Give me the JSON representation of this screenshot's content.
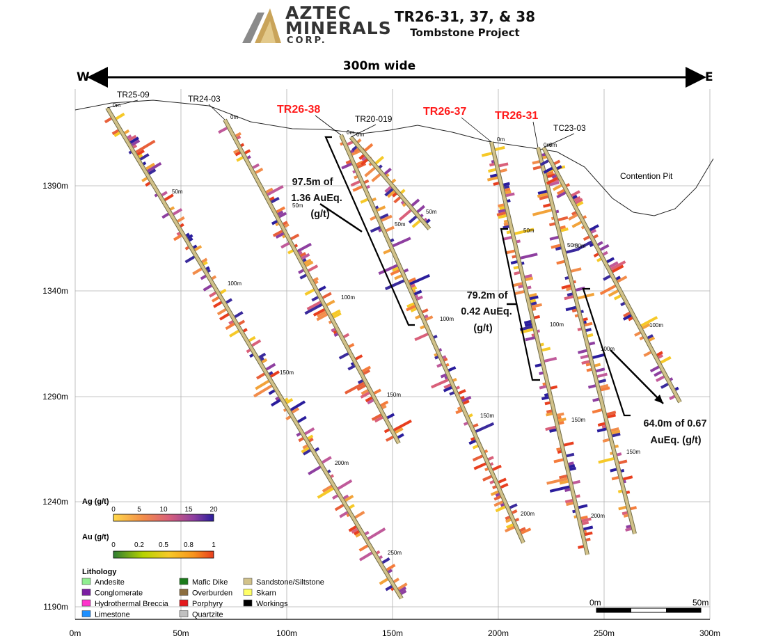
{
  "logo": {
    "line1": "AZTEC",
    "line2": "MINERALS",
    "line3": "CORP.",
    "colors": {
      "gold": "#C9A45A",
      "grey": "#8A8A8A"
    }
  },
  "title": {
    "line1": "TR26-31, 37, & 38",
    "line2": "Tombstone Project"
  },
  "orientation": {
    "west": "W",
    "east": "E",
    "width_label": "300m wide"
  },
  "axes": {
    "x_ticks": [
      "0m",
      "50m",
      "100m",
      "150m",
      "200m",
      "250m",
      "300m"
    ],
    "y_ticks": [
      "1390m",
      "1340m",
      "1290m",
      "1240m",
      "1190m"
    ]
  },
  "pit_label": "Contention Pit",
  "drillholes": [
    {
      "name": "TR25-09",
      "highlight": false,
      "collar_label": "0m",
      "depth_labels": [
        "50m",
        "100m",
        "150m",
        "200m",
        "250m"
      ]
    },
    {
      "name": "TR24-03",
      "highlight": false,
      "collar_label": "0m",
      "depth_labels": [
        "50m",
        "100m",
        "150m"
      ]
    },
    {
      "name": "TR26-38",
      "highlight": true,
      "collar_label": "0m",
      "depth_labels": [
        "50m",
        "100m",
        "150m",
        "200m"
      ]
    },
    {
      "name": "TR20-019",
      "highlight": false,
      "collar_label": "0m",
      "depth_labels": [
        "50m"
      ]
    },
    {
      "name": "TR26-37",
      "highlight": true,
      "collar_label": "0m",
      "depth_labels": [
        "50m",
        "100m",
        "150m",
        "200m"
      ]
    },
    {
      "name": "TR26-31",
      "highlight": true,
      "collar_label": "0m",
      "depth_labels": [
        "50m",
        "100m",
        "150m"
      ]
    },
    {
      "name": "TC23-03",
      "highlight": false,
      "collar_label": "0m",
      "depth_labels": [
        "50m",
        "100m"
      ]
    }
  ],
  "intercepts": [
    {
      "line1": "97.5m of",
      "line2": "1.36 AuEq.",
      "line3": "(g/t)"
    },
    {
      "line1": "79.2m of",
      "line2": "0.42 AuEq.",
      "line3": "(g/t)"
    },
    {
      "line1": "64.0m of 0.67",
      "line2": "AuEq. (g/t)"
    }
  ],
  "legend": {
    "ag_title": "Ag (g/t)",
    "ag_ticks": [
      "0",
      "5",
      "10",
      "15",
      "20"
    ],
    "au_title": "Au (g/t)",
    "au_ticks": [
      "0",
      "0.2",
      "0.5",
      "0.8",
      "1"
    ],
    "lithology_title": "Lithology",
    "lithology": [
      {
        "label": "Andesite",
        "color": "#90EE90"
      },
      {
        "label": "Conglomerate",
        "color": "#7B1FA2"
      },
      {
        "label": "Hydrothermal Breccia",
        "color": "#FF33CC"
      },
      {
        "label": "Limestone",
        "color": "#1E90FF"
      },
      {
        "label": "Mafic Dike",
        "color": "#1B7A1B"
      },
      {
        "label": "Overburden",
        "color": "#8B6D3F"
      },
      {
        "label": "Porphyry",
        "color": "#E41A1C"
      },
      {
        "label": "Quartzite",
        "color": "#C0C0C0"
      },
      {
        "label": "Sandstone/Siltstone",
        "color": "#D2C28A"
      },
      {
        "label": "Skarn",
        "color": "#FFFF66"
      },
      {
        "label": "Workings",
        "color": "#000000"
      }
    ]
  },
  "scale_bar": {
    "left": "0m",
    "right": "50m"
  }
}
